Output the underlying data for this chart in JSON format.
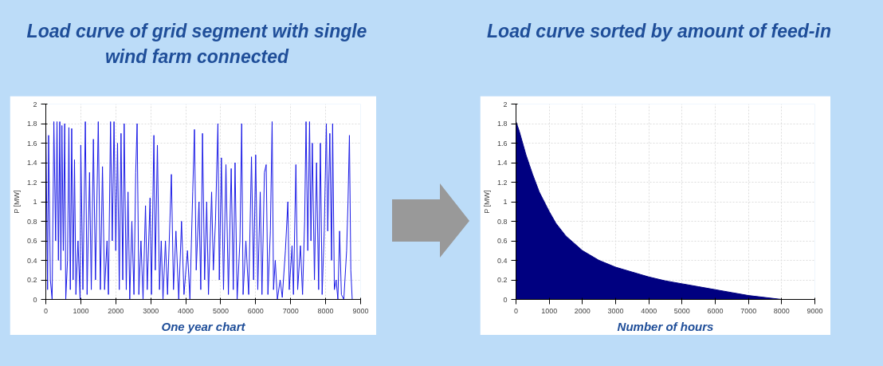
{
  "chart_data": [
    {
      "type": "line",
      "title": "Load curve of grid segment with single wind farm connected",
      "xlabel": "One year chart",
      "ylabel": "P [MW]",
      "xlim": [
        0,
        9000
      ],
      "ylim": [
        0,
        2
      ],
      "xticks": [
        0,
        1000,
        2000,
        3000,
        4000,
        5000,
        6000,
        7000,
        8000,
        9000
      ],
      "yticks": [
        0,
        0.2,
        0.4,
        0.6,
        0.8,
        1,
        1.2,
        1.4,
        1.6,
        1.8,
        2
      ],
      "grid": true,
      "series": [
        {
          "color": "#1a1ae6",
          "x": [
            0,
            50,
            80,
            130,
            180,
            230,
            280,
            320,
            360,
            400,
            430,
            460,
            500,
            540,
            570,
            620,
            660,
            700,
            740,
            780,
            820,
            860,
            920,
            980,
            1000,
            1060,
            1130,
            1180,
            1250,
            1300,
            1360,
            1420,
            1500,
            1560,
            1620,
            1680,
            1750,
            1790,
            1850,
            1900,
            1950,
            2000,
            2050,
            2100,
            2150,
            2200,
            2240,
            2300,
            2350,
            2400,
            2460,
            2520,
            2570,
            2610,
            2660,
            2720,
            2780,
            2850,
            2900,
            2980,
            3020,
            3090,
            3130,
            3190,
            3250,
            3300,
            3350,
            3420,
            3480,
            3590,
            3650,
            3720,
            3800,
            3880,
            3950,
            4050,
            4120,
            4200,
            4250,
            4300,
            4380,
            4430,
            4480,
            4540,
            4600,
            4650,
            4740,
            4790,
            4850,
            4920,
            4960,
            5020,
            5080,
            5150,
            5220,
            5300,
            5360,
            5410,
            5470,
            5550,
            5600,
            5640,
            5720,
            5800,
            5880,
            5940,
            6000,
            6060,
            6130,
            6180,
            6250,
            6300,
            6350,
            6420,
            6470,
            6510,
            6560,
            6620,
            6700,
            6760,
            6850,
            6920,
            6960,
            7040,
            7080,
            7150,
            7200,
            7280,
            7340,
            7400,
            7440,
            7490,
            7540,
            7580,
            7620,
            7680,
            7740,
            7800,
            7850,
            7900,
            7960,
            8020,
            8060,
            8120,
            8170,
            8200,
            8250,
            8300,
            8350,
            8400,
            8450,
            8520,
            8600,
            8640,
            8680,
            8720,
            8760
          ],
          "values": [
            1.8,
            0.1,
            1.68,
            0.2,
            0,
            1.82,
            0.6,
            1.82,
            0.4,
            1.82,
            0.3,
            1.78,
            0.5,
            1.8,
            0,
            0.4,
            1.76,
            0.1,
            1.75,
            0.2,
            1.43,
            0.05,
            0.6,
            0,
            1.58,
            0.1,
            1.82,
            0.05,
            1.3,
            0.1,
            1.64,
            0.2,
            1.82,
            0.1,
            1.36,
            0.1,
            0.6,
            0.05,
            1.82,
            0.6,
            1.82,
            0.5,
            1.6,
            0.1,
            1.7,
            0.2,
            1.8,
            0.1,
            1.1,
            0,
            0.8,
            0.05,
            1.3,
            1.8,
            0.05,
            0.6,
            0,
            0.96,
            0.1,
            1.04,
            0.05,
            1.68,
            0.3,
            1.58,
            0.1,
            0.6,
            0,
            0.6,
            0.05,
            1.28,
            0.1,
            0.7,
            0,
            0.8,
            0.05,
            0.5,
            0,
            1.1,
            1.74,
            0.3,
            1.0,
            0.1,
            1.7,
            0.2,
            1.0,
            0.05,
            1.1,
            0.3,
            0.8,
            1.8,
            0.2,
            1.45,
            0.1,
            1.38,
            0.05,
            1.34,
            0.1,
            1.4,
            0,
            0.6,
            1.8,
            0.05,
            0.6,
            0.05,
            1.46,
            0.2,
            1.48,
            0.1,
            1.1,
            0.05,
            1.3,
            1.38,
            0.05,
            0.7,
            1.82,
            0.1,
            0.4,
            0,
            0.2,
            0.02,
            0.5,
            1.0,
            0.1,
            0.55,
            0.05,
            1.38,
            0.1,
            0.55,
            0.05,
            0.8,
            1.82,
            0.5,
            1.82,
            0.6,
            1.6,
            0.2,
            1.4,
            0.1,
            1.6,
            0.05,
            0.7,
            1.8,
            0.7,
            1.7,
            0.4,
            1.8,
            0.1,
            0.2,
            0,
            0.7,
            0.05,
            0,
            0.5,
            1.0,
            1.68,
            0.3,
            0
          ]
        }
      ]
    },
    {
      "type": "area",
      "title": "Load curve sorted by amount of feed-in",
      "xlabel": "Number of hours",
      "ylabel": "P [MW]",
      "xlim": [
        0,
        9000
      ],
      "ylim": [
        0,
        2
      ],
      "xticks": [
        0,
        1000,
        2000,
        3000,
        4000,
        5000,
        6000,
        7000,
        8000,
        9000
      ],
      "yticks": [
        0,
        0.2,
        0.4,
        0.6,
        0.8,
        1,
        1.2,
        1.4,
        1.6,
        1.8,
        2
      ],
      "grid": true,
      "series": [
        {
          "color": "#000080",
          "x": [
            0,
            100,
            200,
            300,
            400,
            500,
            700,
            1000,
            1200,
            1500,
            2000,
            2500,
            3000,
            3500,
            4000,
            4500,
            5000,
            5500,
            6000,
            6500,
            7000,
            7500,
            8000,
            8200
          ],
          "values": [
            1.82,
            1.72,
            1.6,
            1.48,
            1.38,
            1.28,
            1.1,
            0.9,
            0.78,
            0.65,
            0.5,
            0.4,
            0.33,
            0.28,
            0.23,
            0.19,
            0.16,
            0.13,
            0.1,
            0.07,
            0.04,
            0.02,
            0,
            0
          ]
        }
      ]
    }
  ]
}
